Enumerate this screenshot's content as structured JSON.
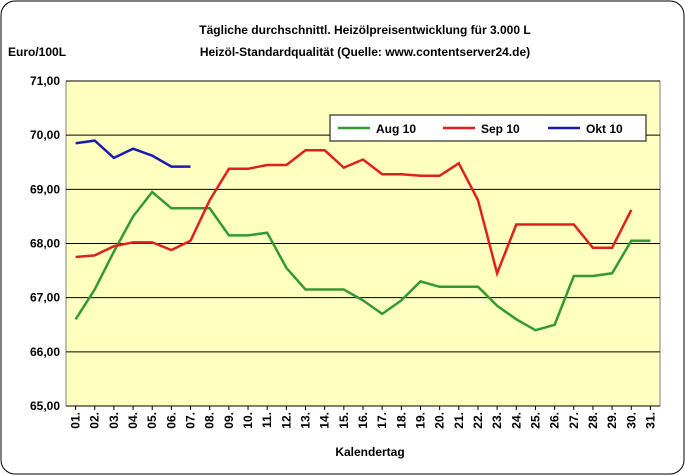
{
  "chart_data": {
    "type": "line",
    "title": "Tägliche durchschnittl. Heizölpreisentwicklung für 3.000 L",
    "subtitle": "Heizöl-Standardqualität (Quelle: www.contentserver24.de)",
    "y_label": "Euro/100L",
    "x_label": "Kalendertag",
    "categories": [
      "01.",
      "02.",
      "03.",
      "04.",
      "05.",
      "06.",
      "07.",
      "08.",
      "09.",
      "10.",
      "11.",
      "12.",
      "13.",
      "14.",
      "15.",
      "16.",
      "17.",
      "18.",
      "19.",
      "20.",
      "21.",
      "22.",
      "23.",
      "24.",
      "25.",
      "26.",
      "27.",
      "28.",
      "29.",
      "30.",
      "31."
    ],
    "series": [
      {
        "name": "Aug 10",
        "color": "#339933",
        "values": [
          66.6,
          67.15,
          67.85,
          68.5,
          68.95,
          68.65,
          68.65,
          68.65,
          68.15,
          68.15,
          68.2,
          67.55,
          67.15,
          67.15,
          67.15,
          66.95,
          66.7,
          66.95,
          67.3,
          67.2,
          67.2,
          67.2,
          66.85,
          66.6,
          66.4,
          66.5,
          67.4,
          67.4,
          67.45,
          68.05,
          68.05
        ]
      },
      {
        "name": "Sep 10",
        "color": "#e02020",
        "values": [
          67.75,
          67.78,
          67.95,
          68.02,
          68.02,
          67.88,
          68.05,
          68.8,
          69.38,
          69.38,
          69.45,
          69.45,
          69.72,
          69.72,
          69.4,
          69.55,
          69.28,
          69.28,
          69.25,
          69.25,
          69.48,
          68.8,
          67.45,
          68.35,
          68.35,
          68.35,
          68.35,
          67.92,
          67.92,
          68.62,
          null
        ]
      },
      {
        "name": "Okt 10",
        "color": "#1a1ab0",
        "values": [
          69.85,
          69.9,
          69.58,
          69.75,
          69.62,
          69.42,
          69.42,
          null,
          null,
          null,
          null,
          null,
          null,
          null,
          null,
          null,
          null,
          null,
          null,
          null,
          null,
          null,
          null,
          null,
          null,
          null,
          null,
          null,
          null,
          null,
          null
        ]
      }
    ],
    "ylim": [
      65,
      71
    ],
    "yticks": [
      {
        "value": 65,
        "label": "65,00"
      },
      {
        "value": 66,
        "label": "66,00"
      },
      {
        "value": 67,
        "label": "67,00"
      },
      {
        "value": 68,
        "label": "68,00"
      },
      {
        "value": 69,
        "label": "69,00"
      },
      {
        "value": 70,
        "label": "70,00"
      },
      {
        "value": 71,
        "label": "71,00"
      }
    ],
    "grid": true,
    "legend": "top-right"
  }
}
